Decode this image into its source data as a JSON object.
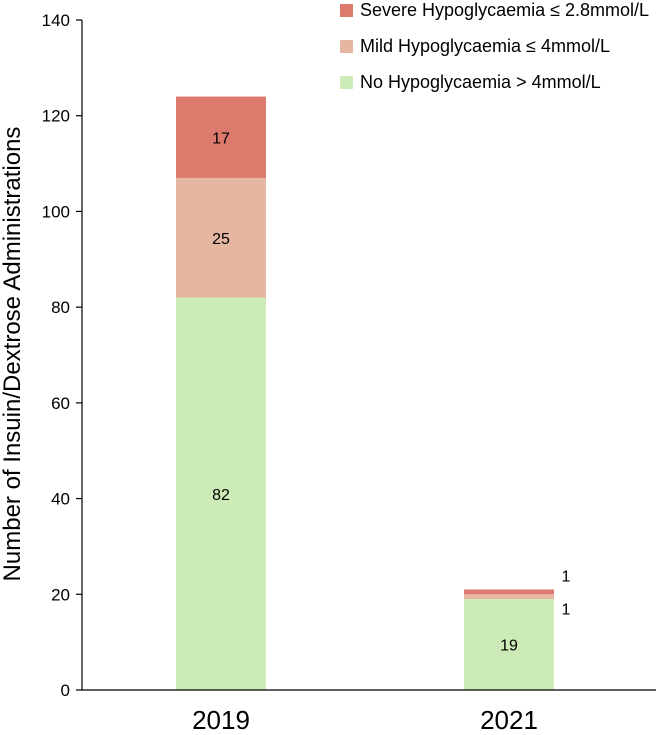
{
  "chart_data": {
    "type": "bar",
    "stacked": true,
    "title": "",
    "xlabel": "",
    "ylabel": "Number of Insuin/Dextrose Administrations",
    "ylim": [
      0,
      140
    ],
    "yticks": [
      0,
      20,
      40,
      60,
      80,
      100,
      120,
      140
    ],
    "grid": false,
    "legend_position": "top-right",
    "categories": [
      "2019",
      "2021"
    ],
    "series": [
      {
        "name": "No Hypoglycaemia > 4mmol/L",
        "color": "#cdebb6",
        "values": [
          82,
          19
        ],
        "labels": [
          "82",
          "19"
        ]
      },
      {
        "name": "Mild Hypoglycaemia  ≤ 4mmol/L",
        "color": "#e5b6a2",
        "values": [
          25,
          1
        ],
        "labels": [
          "25",
          "1"
        ]
      },
      {
        "name": "Severe Hypoglycaemia  ≤ 2.8mmol/L",
        "color": "#dd7a6e",
        "values": [
          17,
          1
        ],
        "labels": [
          "17",
          "1"
        ]
      }
    ]
  }
}
